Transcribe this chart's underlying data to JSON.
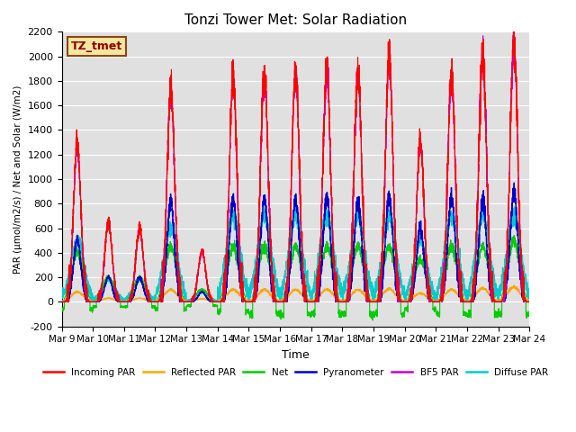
{
  "title": "Tonzi Tower Met: Solar Radiation",
  "ylabel": "PAR (μmol/m2/s) / Net and Solar (W/m2)",
  "xlabel": "Time",
  "ylim": [
    -200,
    2200
  ],
  "yticks": [
    -200,
    0,
    200,
    400,
    600,
    800,
    1000,
    1200,
    1400,
    1600,
    1800,
    2000,
    2200
  ],
  "xtick_labels": [
    "Mar 9",
    "Mar 10",
    "Mar 11",
    "Mar 12",
    "Mar 13",
    "Mar 14",
    "Mar 15",
    "Mar 16",
    "Mar 17",
    "Mar 18",
    "Mar 19",
    "Mar 20",
    "Mar 21",
    "Mar 22",
    "Mar 23",
    "Mar 24"
  ],
  "label_box_text": "TZ_tmet",
  "label_box_color": "#f5e6a0",
  "label_box_edge": "#8B4513",
  "bg_color": "#e0e0e0",
  "series": [
    {
      "name": "Incoming PAR",
      "color": "#ff0000"
    },
    {
      "name": "Reflected PAR",
      "color": "#ffa500"
    },
    {
      "name": "Net",
      "color": "#00cc00"
    },
    {
      "name": "Pyranometer",
      "color": "#0000cc"
    },
    {
      "name": "BF5 PAR",
      "color": "#cc00cc"
    },
    {
      "name": "Diffuse PAR",
      "color": "#00cccc"
    }
  ],
  "n_days": 15,
  "day_points": 288,
  "incoming_peaks": [
    1300,
    650,
    600,
    1750,
    420,
    1820,
    1880,
    1880,
    1900,
    1870,
    2000,
    1300,
    1860,
    2030,
    2130
  ],
  "reflected_peaks": [
    80,
    30,
    30,
    100,
    25,
    100,
    100,
    100,
    100,
    100,
    105,
    70,
    100,
    110,
    120
  ],
  "net_peaks": [
    400,
    200,
    200,
    450,
    100,
    450,
    450,
    450,
    450,
    450,
    450,
    350,
    450,
    450,
    500
  ],
  "pyran_peaks": [
    500,
    200,
    200,
    800,
    80,
    840,
    840,
    840,
    840,
    840,
    840,
    600,
    840,
    840,
    900
  ],
  "bf5_peaks": [
    1250,
    630,
    590,
    1700,
    400,
    1780,
    1840,
    1840,
    1870,
    1840,
    1970,
    1280,
    1830,
    2000,
    2100
  ],
  "diffuse_peaks": [
    500,
    180,
    180,
    600,
    80,
    700,
    700,
    700,
    700,
    700,
    700,
    500,
    700,
    700,
    700
  ],
  "net_night": [
    -60,
    -40,
    -40,
    -60,
    -30,
    -80,
    -100,
    -100,
    -100,
    -100,
    -100,
    -60,
    -100,
    -100,
    -100
  ]
}
